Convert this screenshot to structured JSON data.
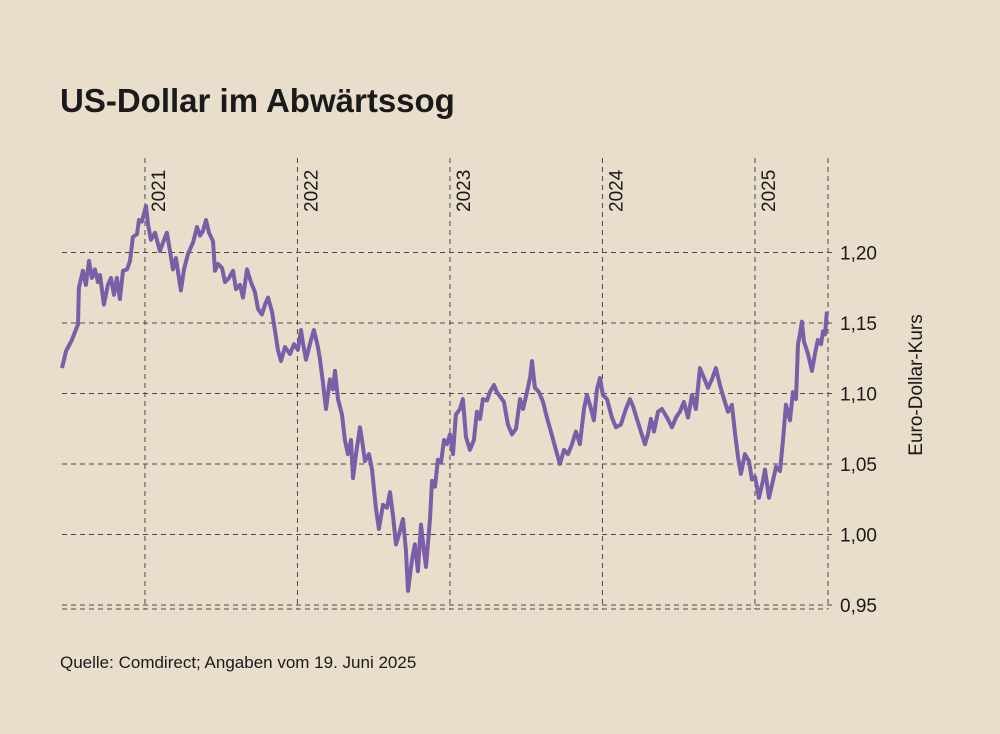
{
  "chart_data": {
    "type": "line",
    "title": "US-Dollar im Abwärtssog",
    "y_label": "Euro-Dollar-Kurs",
    "source": "Quelle: Comdirect; Angaben vom 19. Juni 2025",
    "xlim": [
      2020.456,
      2025.479
    ],
    "xticks": [
      2021,
      2022,
      2023,
      2024,
      2025
    ],
    "ylim": [
      0.95,
      1.267
    ],
    "yticks": [
      {
        "value": 0.95,
        "label": "0,95"
      },
      {
        "value": 1.0,
        "label": "1,00"
      },
      {
        "value": 1.05,
        "label": "1,05"
      },
      {
        "value": 1.1,
        "label": "1,10"
      },
      {
        "value": 1.15,
        "label": "1,15"
      },
      {
        "value": 1.2,
        "label": "1,20"
      }
    ],
    "grid": true,
    "series": [
      {
        "name": "EUR/USD",
        "color": "#7b5ea7",
        "x": [
          2020.456,
          2020.482,
          2020.521,
          2020.561,
          2020.567,
          2020.593,
          2020.613,
          2020.633,
          2020.652,
          2020.672,
          2020.692,
          2020.705,
          2020.731,
          2020.757,
          2020.777,
          2020.797,
          2020.816,
          2020.836,
          2020.856,
          2020.882,
          2020.902,
          2020.921,
          2020.948,
          2020.961,
          2020.98,
          2021.007,
          2021.02,
          2021.039,
          2021.066,
          2021.098,
          2021.118,
          2021.144,
          2021.164,
          2021.184,
          2021.203,
          2021.236,
          2021.256,
          2021.282,
          2021.315,
          2021.341,
          2021.361,
          2021.38,
          2021.4,
          2021.42,
          2021.446,
          2021.459,
          2021.479,
          2021.505,
          2021.525,
          2021.551,
          2021.577,
          2021.597,
          2021.623,
          2021.643,
          2021.669,
          2021.695,
          2021.721,
          2021.741,
          2021.767,
          2021.787,
          2021.807,
          2021.833,
          2021.852,
          2021.872,
          2021.892,
          2021.918,
          2021.951,
          2021.977,
          2022.003,
          2022.023,
          2022.036,
          2022.056,
          2022.089,
          2022.108,
          2022.134,
          2022.148,
          2022.167,
          2022.187,
          2022.213,
          2022.233,
          2022.246,
          2022.266,
          2022.292,
          2022.311,
          2022.331,
          2022.351,
          2022.364,
          2022.384,
          2022.41,
          2022.423,
          2022.443,
          2022.469,
          2022.489,
          2022.515,
          2022.534,
          2022.561,
          2022.587,
          2022.607,
          2022.626,
          2022.646,
          2022.666,
          2022.692,
          2022.711,
          2022.725,
          2022.751,
          2022.77,
          2022.79,
          2022.81,
          2022.83,
          2022.843,
          2022.869,
          2022.882,
          2022.902,
          2022.921,
          2022.941,
          2022.961,
          2022.98,
          2023.0,
          2023.02,
          2023.039,
          2023.066,
          2023.085,
          2023.105,
          2023.131,
          2023.157,
          2023.177,
          2023.197,
          2023.216,
          2023.243,
          2023.262,
          2023.289,
          2023.308,
          2023.334,
          2023.354,
          2023.38,
          2023.407,
          2023.433,
          2023.459,
          2023.479,
          2023.505,
          2023.525,
          2023.538,
          2023.557,
          2023.584,
          2023.61,
          2023.636,
          2023.662,
          2023.695,
          2023.721,
          2023.748,
          2023.774,
          2023.8,
          2023.826,
          2023.852,
          2023.879,
          2023.898,
          2023.918,
          2023.944,
          2023.964,
          2023.984,
          2024.003,
          2024.03,
          2024.062,
          2024.089,
          2024.121,
          2024.154,
          2024.18,
          2024.2,
          2024.226,
          2024.252,
          2024.279,
          2024.298,
          2024.318,
          2024.338,
          2024.364,
          2024.39,
          2024.423,
          2024.456,
          2024.482,
          2024.508,
          2024.534,
          2024.561,
          2024.587,
          2024.613,
          2024.639,
          2024.666,
          2024.692,
          2024.718,
          2024.744,
          2024.77,
          2024.797,
          2024.823,
          2024.849,
          2024.869,
          2024.889,
          2024.908,
          2024.934,
          2024.961,
          2024.98,
          2025.0,
          2025.026,
          2025.052,
          2025.066,
          2025.092,
          2025.118,
          2025.138,
          2025.164,
          2025.184,
          2025.203,
          2025.23,
          2025.249,
          2025.269,
          2025.282,
          2025.295,
          2025.308,
          2025.321,
          2025.348,
          2025.374,
          2025.393,
          2025.413,
          2025.433,
          2025.446,
          2025.459,
          2025.472
        ],
        "values": [
          1.118,
          1.13,
          1.138,
          1.149,
          1.175,
          1.187,
          1.177,
          1.194,
          1.182,
          1.188,
          1.179,
          1.184,
          1.163,
          1.177,
          1.182,
          1.17,
          1.182,
          1.167,
          1.187,
          1.188,
          1.194,
          1.211,
          1.213,
          1.223,
          1.222,
          1.233,
          1.22,
          1.209,
          1.214,
          1.201,
          1.207,
          1.214,
          1.201,
          1.188,
          1.196,
          1.173,
          1.188,
          1.199,
          1.207,
          1.218,
          1.212,
          1.215,
          1.223,
          1.214,
          1.208,
          1.187,
          1.192,
          1.189,
          1.179,
          1.182,
          1.187,
          1.174,
          1.177,
          1.168,
          1.188,
          1.179,
          1.172,
          1.16,
          1.156,
          1.163,
          1.168,
          1.158,
          1.145,
          1.131,
          1.123,
          1.133,
          1.128,
          1.135,
          1.131,
          1.145,
          1.136,
          1.124,
          1.138,
          1.145,
          1.133,
          1.124,
          1.108,
          1.089,
          1.11,
          1.103,
          1.116,
          1.096,
          1.085,
          1.067,
          1.057,
          1.067,
          1.04,
          1.057,
          1.076,
          1.067,
          1.052,
          1.057,
          1.046,
          1.018,
          1.004,
          1.021,
          1.019,
          1.03,
          1.014,
          0.993,
          1.0,
          1.011,
          0.989,
          0.96,
          0.982,
          0.993,
          0.974,
          1.007,
          0.988,
          0.977,
          1.011,
          1.038,
          1.034,
          1.053,
          1.051,
          1.067,
          1.064,
          1.071,
          1.057,
          1.085,
          1.089,
          1.096,
          1.069,
          1.06,
          1.067,
          1.087,
          1.082,
          1.096,
          1.095,
          1.101,
          1.106,
          1.101,
          1.097,
          1.094,
          1.078,
          1.071,
          1.075,
          1.096,
          1.089,
          1.101,
          1.111,
          1.123,
          1.104,
          1.101,
          1.094,
          1.083,
          1.073,
          1.06,
          1.05,
          1.06,
          1.057,
          1.064,
          1.073,
          1.064,
          1.089,
          1.099,
          1.092,
          1.081,
          1.103,
          1.111,
          1.099,
          1.096,
          1.083,
          1.076,
          1.078,
          1.089,
          1.096,
          1.091,
          1.082,
          1.073,
          1.064,
          1.071,
          1.082,
          1.073,
          1.087,
          1.089,
          1.083,
          1.076,
          1.083,
          1.087,
          1.094,
          1.083,
          1.099,
          1.089,
          1.118,
          1.111,
          1.104,
          1.11,
          1.118,
          1.106,
          1.096,
          1.087,
          1.092,
          1.072,
          1.055,
          1.043,
          1.057,
          1.052,
          1.039,
          1.041,
          1.026,
          1.038,
          1.046,
          1.026,
          1.038,
          1.048,
          1.045,
          1.067,
          1.092,
          1.081,
          1.101,
          1.096,
          1.135,
          1.142,
          1.151,
          1.137,
          1.128,
          1.116,
          1.128,
          1.138,
          1.135,
          1.144,
          1.142,
          1.158
        ]
      }
    ]
  }
}
